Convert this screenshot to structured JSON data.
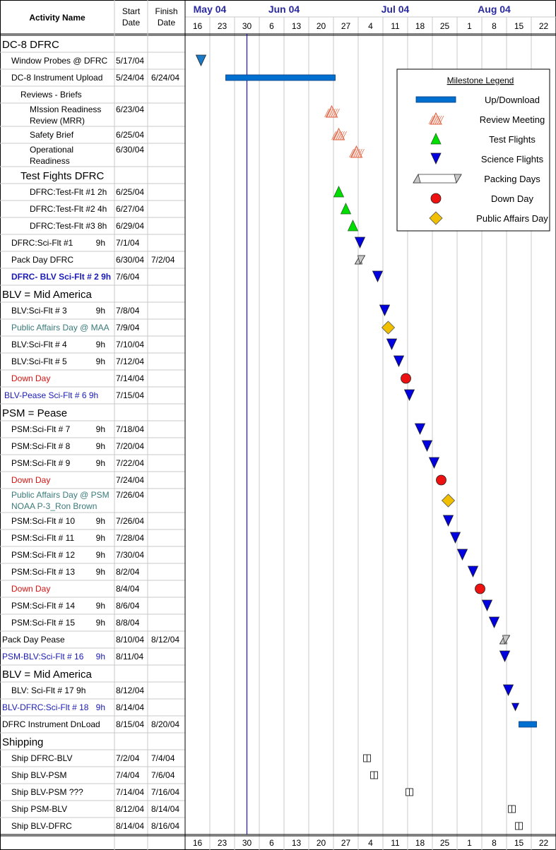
{
  "header": {
    "activity": "Activity Name",
    "start_line1": "Start",
    "start_line2": "Date",
    "finish_line1": "Finish",
    "finish_line2": "Date",
    "months": [
      {
        "label": "May 04",
        "col": 0,
        "span": 2
      },
      {
        "label": "Jun 04",
        "col": 3,
        "span": 2
      },
      {
        "label": "Jul 04",
        "col": 7,
        "span": 3
      },
      {
        "label": "Aug 04",
        "col": 11,
        "span": 3
      }
    ],
    "weeks": [
      "16",
      "23",
      "30",
      "6",
      "13",
      "20",
      "27",
      "4",
      "11",
      "18",
      "25",
      "1",
      "8",
      "15",
      "22"
    ]
  },
  "legend": {
    "title": "Milestone Legend",
    "items": [
      {
        "label": "Up/Download",
        "icon": "bar-icon"
      },
      {
        "label": "Review Meeting",
        "icon": "hatched-triangle-icon"
      },
      {
        "label": "Test Flights",
        "icon": "green-triangle-icon"
      },
      {
        "label": "Science Flights",
        "icon": "blue-down-triangle-icon"
      },
      {
        "label": "Packing Days",
        "icon": "packing-icon"
      },
      {
        "label": "Down Day",
        "icon": "red-circle-icon"
      },
      {
        "label": "Public Affairs Day",
        "icon": "diamond-icon"
      }
    ]
  },
  "colors": {
    "bar": "#0070d0",
    "sci": "#0000e0",
    "test": "#00dd00",
    "review": "#e06040",
    "down": "#ee1111",
    "pad": "#f0c000",
    "today": "#1a1aa0",
    "month": "#2a2aa0"
  },
  "chart_data": {
    "type": "gantt",
    "today": "5/30/04",
    "tasks": [
      {
        "name": "DC-8 DFRC",
        "lines": [
          "DC-8 DFRC"
        ],
        "indent": 0,
        "color": "#000000",
        "section": true,
        "start": "",
        "finish": "",
        "row_h": 24
      },
      {
        "name": "Window Probes @ DFRC",
        "lines": [
          "Window Probes @ DFRC"
        ],
        "indent": 1,
        "color": "#000000",
        "start": "5/17/04",
        "finish": "",
        "marker": "science",
        "mx": "5/17/04",
        "row_h": 24
      },
      {
        "name": "DC-8 Instrument Upload",
        "lines": [
          "DC-8 Instrument  Upload"
        ],
        "indent": 1,
        "color": "#000000",
        "start": "5/24/04",
        "finish": "6/24/04",
        "marker": "bar",
        "mx": "5/24/04",
        "mx2": "6/24/04",
        "row_h": 24
      },
      {
        "name": "Reviews - Briefs",
        "lines": [
          "Reviews - Briefs"
        ],
        "indent": 2,
        "color": "#000000",
        "start": "",
        "finish": "",
        "row_h": 24
      },
      {
        "name": "MIssion Readiness Review (MRR)",
        "lines": [
          "MIssion Readiness",
          "Review (MRR)"
        ],
        "indent": 3,
        "color": "#000000",
        "start": "6/23/04",
        "finish": "",
        "marker": "review",
        "mx": "6/23/04",
        "row_h": 33
      },
      {
        "name": "Safety Brief",
        "lines": [
          "Safety Brief"
        ],
        "indent": 3,
        "color": "#000000",
        "start": "6/25/04",
        "finish": "",
        "marker": "review",
        "mx": "6/25/04",
        "row_h": 24
      },
      {
        "name": "Operational Readiness",
        "lines": [
          "Operational",
          "Readiness"
        ],
        "indent": 3,
        "color": "#000000",
        "start": "6/30/04",
        "finish": "",
        "marker": "review",
        "mx": "6/30/04",
        "row_h": 33
      },
      {
        "name": "Test Fights DFRC",
        "lines": [
          "Test Fights DFRC"
        ],
        "indent": 2,
        "color": "#000000",
        "section": true,
        "start": "",
        "finish": "",
        "row_h": 24
      },
      {
        "name": "DFRC:Test-Flt #1  2h",
        "lines": [
          "DFRC:Test-Flt #1  2h"
        ],
        "indent": 3,
        "color": "#000000",
        "start": "6/25/04",
        "finish": "",
        "marker": "test",
        "mx": "6/25/04",
        "row_h": 24
      },
      {
        "name": "DFRC:Test-Flt #2  4h",
        "lines": [
          "DFRC:Test-Flt #2  4h"
        ],
        "indent": 3,
        "color": "#000000",
        "start": "6/27/04",
        "finish": "",
        "marker": "test",
        "mx": "6/27/04",
        "row_h": 24
      },
      {
        "name": "DFRC:Test-Flt #3  8h",
        "lines": [
          "DFRC:Test-Flt #3  8h"
        ],
        "indent": 3,
        "color": "#000000",
        "start": "6/29/04",
        "finish": "",
        "marker": "test",
        "mx": "6/29/04",
        "row_h": 24
      },
      {
        "name": "DFRC:Sci-Flt #1",
        "lines": [
          "DFRC:Sci-Flt #1"
        ],
        "hrs": "9h",
        "indent": 1,
        "color": "#000000",
        "start": "7/1/04",
        "finish": "",
        "marker": "science",
        "mx": "7/1/04",
        "row_h": 24
      },
      {
        "name": "Pack Day DFRC",
        "lines": [
          "Pack Day DFRC"
        ],
        "indent": 1,
        "color": "#000000",
        "start": "6/30/04",
        "finish": "7/2/04",
        "marker": "pack",
        "mx": "6/30/04",
        "mx2": "7/2/04",
        "row_h": 24
      },
      {
        "name": "DFRC- BLV  Sci-Flt # 2  9h",
        "lines": [
          "DFRC- BLV  Sci-Flt # 2  9h"
        ],
        "indent": 1,
        "color": "#1a1ab8",
        "bold": true,
        "start": "7/6/04",
        "finish": "",
        "marker": "science",
        "mx": "7/6/04",
        "row_h": 24
      },
      {
        "name": "BLV = Mid America",
        "lines": [
          "BLV = Mid America"
        ],
        "indent": 0,
        "color": "#000000",
        "section": true,
        "start": "",
        "finish": "",
        "row_h": 24
      },
      {
        "name": "BLV:Sci-Flt # 3",
        "lines": [
          "BLV:Sci-Flt # 3"
        ],
        "hrs": "9h",
        "indent": 1,
        "color": "#000000",
        "start": "7/8/04",
        "finish": "",
        "marker": "science",
        "mx": "7/8/04",
        "row_h": 24
      },
      {
        "name": "Public Affairs Day @ MAA",
        "lines": [
          "Public Affairs Day @ MAA"
        ],
        "indent": 1,
        "color": "#3a7a7a",
        "start": "7/9/04",
        "finish": "",
        "marker": "pad",
        "mx": "7/9/04",
        "row_h": 24
      },
      {
        "name": "BLV:Sci-Flt # 4",
        "lines": [
          "BLV:Sci-Flt # 4"
        ],
        "hrs": "9h",
        "indent": 1,
        "color": "#000000",
        "start": "7/10/04",
        "finish": "",
        "marker": "science",
        "mx": "7/10/04",
        "row_h": 24
      },
      {
        "name": "BLV:Sci-Flt # 5",
        "lines": [
          "BLV:Sci-Flt # 5"
        ],
        "hrs": "9h",
        "indent": 1,
        "color": "#000000",
        "start": "7/12/04",
        "finish": "",
        "marker": "science",
        "mx": "7/12/04",
        "row_h": 24
      },
      {
        "name": "Down Day",
        "lines": [
          "Down Day"
        ],
        "indent": 1,
        "color": "#dd1111",
        "start": "7/14/04",
        "finish": "",
        "marker": "down",
        "mx": "7/14/04",
        "row_h": 24
      },
      {
        "name": "BLV-Pease Sci-Flt # 6  9h",
        "lines": [
          "BLV-Pease Sci-Flt # 6  9h"
        ],
        "indent": 0.5,
        "color": "#1a1ab8",
        "start": "7/15/04",
        "finish": "",
        "marker": "science",
        "mx": "7/15/04",
        "row_h": 24
      },
      {
        "name": "PSM = Pease",
        "lines": [
          "PSM = Pease"
        ],
        "indent": 0,
        "color": "#000000",
        "section": true,
        "start": "",
        "finish": "",
        "row_h": 24
      },
      {
        "name": "PSM:Sci-Flt # 7",
        "lines": [
          "PSM:Sci-Flt # 7"
        ],
        "hrs": "9h",
        "indent": 1,
        "color": "#000000",
        "start": "7/18/04",
        "finish": "",
        "marker": "science",
        "mx": "7/18/04",
        "row_h": 24
      },
      {
        "name": "PSM:Sci-Flt # 8",
        "lines": [
          "PSM:Sci-Flt # 8"
        ],
        "hrs": "9h",
        "indent": 1,
        "color": "#000000",
        "start": "7/20/04",
        "finish": "",
        "marker": "science",
        "mx": "7/20/04",
        "row_h": 24
      },
      {
        "name": "PSM:Sci-Flt # 9",
        "lines": [
          "PSM:Sci-Flt # 9"
        ],
        "hrs": "9h",
        "indent": 1,
        "color": "#000000",
        "start": "7/22/04",
        "finish": "",
        "marker": "science",
        "mx": "7/22/04",
        "row_h": 24
      },
      {
        "name": "Down Day",
        "lines": [
          "Down Day"
        ],
        "indent": 1,
        "color": "#dd1111",
        "start": "7/24/04",
        "finish": "",
        "marker": "down",
        "mx": "7/24/04",
        "row_h": 24
      },
      {
        "name": "Public Affairs Day @ PSM NOAA P-3_Ron Brown",
        "lines": [
          "Public Affairs Day @ PSM",
          "NOAA P-3_Ron Brown"
        ],
        "indent": 1,
        "color": "#3a7a7a",
        "start": "7/26/04",
        "finish": "",
        "marker": "pad",
        "mx": "7/26/04",
        "row_h": 34
      },
      {
        "name": "PSM:Sci-Flt # 10",
        "lines": [
          "PSM:Sci-Flt # 10"
        ],
        "hrs": "9h",
        "indent": 1,
        "color": "#000000",
        "start": "7/26/04",
        "finish": "",
        "marker": "science",
        "mx": "7/26/04",
        "row_h": 24
      },
      {
        "name": "PSM:Sci-Flt # 11",
        "lines": [
          "PSM:Sci-Flt # 11"
        ],
        "hrs": "9h",
        "indent": 1,
        "color": "#000000",
        "start": "7/28/04",
        "finish": "",
        "marker": "science",
        "mx": "7/28/04",
        "row_h": 24
      },
      {
        "name": "PSM:Sci-Flt # 12",
        "lines": [
          "PSM:Sci-Flt # 12"
        ],
        "hrs": "9h",
        "indent": 1,
        "color": "#000000",
        "start": "7/30/04",
        "finish": "",
        "marker": "science",
        "mx": "7/30/04",
        "row_h": 24
      },
      {
        "name": "PSM:Sci-Flt # 13",
        "lines": [
          "PSM:Sci-Flt # 13"
        ],
        "hrs": "9h",
        "indent": 1,
        "color": "#000000",
        "start": "8/2/04",
        "finish": "",
        "marker": "science",
        "mx": "8/2/04",
        "row_h": 24
      },
      {
        "name": "Down Day",
        "lines": [
          "Down Day"
        ],
        "indent": 1,
        "color": "#dd1111",
        "start": "8/4/04",
        "finish": "",
        "marker": "down",
        "mx": "8/4/04",
        "row_h": 24
      },
      {
        "name": "PSM:Sci-Flt # 14",
        "lines": [
          "PSM:Sci-Flt # 14"
        ],
        "hrs": "9h",
        "indent": 1,
        "color": "#000000",
        "start": "8/6/04",
        "finish": "",
        "marker": "science",
        "mx": "8/6/04",
        "row_h": 24
      },
      {
        "name": "PSM:Sci-Flt # 15",
        "lines": [
          "PSM:Sci-Flt # 15"
        ],
        "hrs": "9h",
        "indent": 1,
        "color": "#000000",
        "start": "8/8/04",
        "finish": "",
        "marker": "science",
        "mx": "8/8/04",
        "row_h": 24
      },
      {
        "name": "Pack Day Pease",
        "lines": [
          "Pack Day Pease"
        ],
        "indent": 0,
        "color": "#000000",
        "start": "8/10/04",
        "finish": "8/12/04",
        "marker": "pack",
        "mx": "8/10/04",
        "mx2": "8/12/04",
        "row_h": 24
      },
      {
        "name": "PSM-BLV:Sci-Flt # 16",
        "lines": [
          "PSM-BLV:Sci-Flt # 16"
        ],
        "hrs": "9h",
        "indent": 0,
        "color": "#1a1ab8",
        "start": "8/11/04",
        "finish": "",
        "marker": "science",
        "mx": "8/11/04",
        "row_h": 24
      },
      {
        "name": "BLV = Mid America",
        "lines": [
          "BLV = Mid America"
        ],
        "indent": 0,
        "color": "#000000",
        "section": true,
        "start": "",
        "finish": "",
        "row_h": 24
      },
      {
        "name": "BLV: Sci-Flt # 17 9h",
        "lines": [
          "BLV: Sci-Flt # 17 9h"
        ],
        "indent": 1,
        "color": "#000000",
        "start": "8/12/04",
        "finish": "",
        "marker": "science",
        "mx": "8/12/04",
        "row_h": 24
      },
      {
        "name": "BLV-DFRC:Sci-Flt # 18",
        "lines": [
          "BLV-DFRC:Sci-Flt # 18"
        ],
        "hrs": "9h",
        "indent": 0,
        "color": "#1a1ab8",
        "start": "8/14/04",
        "finish": "",
        "marker": "science_small",
        "mx": "8/14/04",
        "row_h": 24
      },
      {
        "name": "DFRC Instrument DnLoad",
        "lines": [
          "DFRC Instrument DnLoad"
        ],
        "indent": 0,
        "color": "#000000",
        "start": "8/15/04",
        "finish": "8/20/04",
        "marker": "bar",
        "mx": "8/15/04",
        "mx2": "8/20/04",
        "row_h": 24
      },
      {
        "name": "Shipping",
        "lines": [
          "Shipping"
        ],
        "indent": 0,
        "color": "#000000",
        "section": true,
        "start": "",
        "finish": "",
        "row_h": 24
      },
      {
        "name": "Ship DFRC-BLV",
        "lines": [
          "Ship DFRC-BLV"
        ],
        "indent": 1,
        "color": "#000000",
        "start": "7/2/04",
        "finish": "7/4/04",
        "marker": "ship",
        "mx": "7/2/04",
        "mx2": "7/4/04",
        "row_h": 24
      },
      {
        "name": "Ship BLV-PSM",
        "lines": [
          "Ship BLV-PSM"
        ],
        "indent": 1,
        "color": "#000000",
        "start": "7/4/04",
        "finish": "7/6/04",
        "marker": "ship",
        "mx": "7/4/04",
        "mx2": "7/6/04",
        "row_h": 24
      },
      {
        "name": "Ship BLV-PSM  ???",
        "lines": [
          "Ship BLV-PSM  ???"
        ],
        "indent": 1,
        "color": "#000000",
        "start": "7/14/04",
        "finish": "7/16/04",
        "marker": "ship",
        "mx": "7/14/04",
        "mx2": "7/16/04",
        "row_h": 24
      },
      {
        "name": "Ship PSM-BLV",
        "lines": [
          "Ship PSM-BLV"
        ],
        "indent": 1,
        "color": "#000000",
        "start": "8/12/04",
        "finish": "8/14/04",
        "marker": "ship",
        "mx": "8/12/04",
        "mx2": "8/14/04",
        "row_h": 24
      },
      {
        "name": "Ship BLV-DFRC",
        "lines": [
          "Ship BLV-DFRC"
        ],
        "indent": 1,
        "color": "#000000",
        "start": "8/14/04",
        "finish": "8/16/04",
        "marker": "ship",
        "mx": "8/14/04",
        "mx2": "8/16/04",
        "row_h": 24
      }
    ]
  }
}
